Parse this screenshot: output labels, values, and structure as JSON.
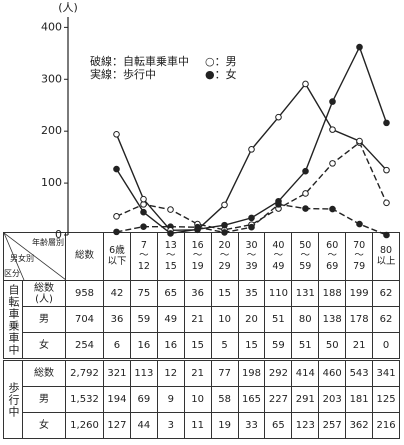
{
  "chart_data": {
    "type": "line",
    "y_unit": "(人)",
    "line_legend": [
      "破線：自転車乗車中",
      "実線：歩行中"
    ],
    "marker_legend": [
      "○：男",
      "●：女"
    ],
    "categories": [
      "6歳\n以下",
      "7\n～\n12",
      "13\n～\n15",
      "16\n～\n19",
      "20\n～\n29",
      "30\n～\n39",
      "40\n～\n49",
      "50\n～\n59",
      "60\n～\n69",
      "70\n～\n79",
      "80\n以上"
    ],
    "ylim": [
      0,
      420
    ],
    "yticks": [
      0,
      100,
      200,
      300,
      400
    ],
    "series": [
      {
        "color": "#222",
        "dashed": true,
        "marker": "open",
        "values": [
          36,
          59,
          49,
          21,
          10,
          20,
          51,
          80,
          138,
          178,
          62
        ]
      },
      {
        "color": "#222",
        "dashed": true,
        "marker": "filled",
        "values": [
          6,
          16,
          16,
          15,
          5,
          15,
          59,
          51,
          50,
          21,
          0
        ]
      },
      {
        "color": "#222",
        "dashed": false,
        "marker": "open",
        "values": [
          194,
          69,
          9,
          10,
          58,
          165,
          227,
          291,
          203,
          181,
          125
        ]
      },
      {
        "color": "#222",
        "dashed": false,
        "marker": "filled",
        "values": [
          127,
          44,
          3,
          11,
          19,
          33,
          65,
          123,
          257,
          362,
          216
        ]
      }
    ]
  },
  "table": {
    "corner": [
      "年齢層別",
      "男女別",
      "区分"
    ],
    "total_header": "総数",
    "groups": [
      {
        "label": "自転車乗車中",
        "rows": [
          {
            "label": "総数\n(人)",
            "total": 958,
            "values": [
              42,
              75,
              65,
              36,
              15,
              35,
              110,
              131,
              188,
              199,
              62
            ]
          },
          {
            "label": "男",
            "total": 704
          },
          {
            "label": "女",
            "total": 254
          }
        ]
      },
      {
        "label": "歩行中",
        "rows": [
          {
            "label": "総数",
            "total": {
              "value": 2792,
              "label": "2,792"
            },
            "values": [
              321,
              113,
              12,
              21,
              77,
              198,
              292,
              414,
              460,
              543,
              341
            ]
          },
          {
            "label": "男",
            "total": {
              "value": 1532,
              "label": "1,532"
            }
          },
          {
            "label": "女",
            "total": {
              "value": 1260,
              "label": "1,260"
            }
          }
        ]
      }
    ]
  }
}
